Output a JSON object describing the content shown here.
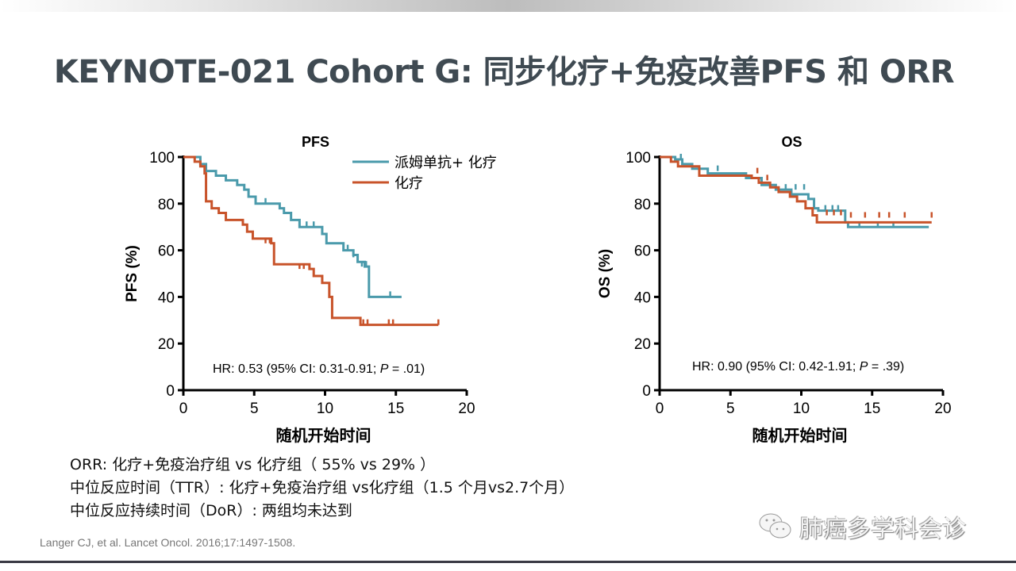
{
  "title": "KEYNOTE-021 Cohort G: 同步化疗+免疫改善PFS 和 ORR",
  "colors": {
    "combo": "#4a9aab",
    "chemo": "#c8532a",
    "title": "#3f4a52"
  },
  "chart_data": [
    {
      "type": "line",
      "subtype": "kaplan-meier",
      "title": "PFS",
      "xlabel": "随机开始时间",
      "ylabel": "PFS (%)",
      "xlim": [
        0,
        20
      ],
      "ylim": [
        0,
        100
      ],
      "xticks": [
        0,
        5,
        10,
        15,
        20
      ],
      "yticks": [
        0,
        20,
        40,
        60,
        80,
        100
      ],
      "legend_placement": "top-right",
      "annotation": {
        "pre": "HR: 0.53 (95% CI: 0.31-0.91; ",
        "italic": "P",
        "post": " = .01)"
      },
      "series": [
        {
          "name": "派姆单抗+ 化疗",
          "color": "#4a9aab",
          "steps": [
            [
              0,
              100
            ],
            [
              1.2,
              97
            ],
            [
              1.6,
              94
            ],
            [
              2.3,
              92
            ],
            [
              3,
              90
            ],
            [
              3.8,
              88
            ],
            [
              4.3,
              86
            ],
            [
              4.6,
              83
            ],
            [
              5.1,
              80
            ],
            [
              6.8,
              78
            ],
            [
              7.1,
              76
            ],
            [
              7.6,
              73
            ],
            [
              8.2,
              70
            ],
            [
              9.8,
              67
            ],
            [
              10.1,
              63
            ],
            [
              11.3,
              60
            ],
            [
              12,
              58
            ],
            [
              12.3,
              55
            ],
            [
              12.8,
              53
            ],
            [
              13.1,
              40
            ],
            [
              15.4,
              40
            ]
          ],
          "censored": [
            [
              5.8,
              80
            ],
            [
              8.7,
              70
            ],
            [
              9.2,
              70
            ],
            [
              11.6,
              60
            ],
            [
              12,
              57
            ],
            [
              12.6,
              53
            ],
            [
              12.9,
              53
            ],
            [
              14.6,
              40
            ]
          ]
        },
        {
          "name": "化疗",
          "color": "#c8532a",
          "steps": [
            [
              0,
              100
            ],
            [
              0.8,
              98
            ],
            [
              1.2,
              96
            ],
            [
              1.5,
              93
            ],
            [
              1.6,
              81
            ],
            [
              2,
              78
            ],
            [
              2.5,
              76
            ],
            [
              3,
              73
            ],
            [
              4.2,
              71
            ],
            [
              4.5,
              68
            ],
            [
              4.9,
              65
            ],
            [
              6.2,
              63
            ],
            [
              6.4,
              54
            ],
            [
              8.9,
              52
            ],
            [
              9.2,
              49
            ],
            [
              9.8,
              46
            ],
            [
              10.3,
              40
            ],
            [
              10.5,
              31
            ],
            [
              12.5,
              28
            ],
            [
              18,
              28
            ]
          ],
          "censored": [
            [
              5.8,
              63
            ],
            [
              6.1,
              63
            ],
            [
              8.2,
              52
            ],
            [
              8.5,
              52
            ],
            [
              12.7,
              28
            ],
            [
              13,
              28
            ],
            [
              14.5,
              28
            ],
            [
              14.8,
              28
            ],
            [
              18,
              28
            ]
          ]
        }
      ]
    },
    {
      "type": "line",
      "subtype": "kaplan-meier",
      "title": "OS",
      "xlabel": "随机开始时间",
      "ylabel": "OS (%)",
      "xlim": [
        0,
        20
      ],
      "ylim": [
        0,
        100
      ],
      "xticks": [
        0,
        5,
        10,
        15,
        20
      ],
      "yticks": [
        0,
        20,
        40,
        60,
        80,
        100
      ],
      "annotation": {
        "pre": "HR: 0.90 (95% CI: 0.42-1.91; ",
        "italic": "P",
        "post": " = .39)"
      },
      "series": [
        {
          "name": "派姆单抗+ 化疗",
          "color": "#4a9aab",
          "steps": [
            [
              0,
              100
            ],
            [
              1.1,
              99
            ],
            [
              1.6,
              97
            ],
            [
              2.3,
              95
            ],
            [
              3.4,
              93
            ],
            [
              6.1,
              91
            ],
            [
              7.2,
              88
            ],
            [
              8.2,
              86
            ],
            [
              9.3,
              84
            ],
            [
              10.5,
              82
            ],
            [
              10.9,
              78
            ],
            [
              11.2,
              77
            ],
            [
              13.1,
              72
            ],
            [
              13.3,
              70
            ],
            [
              19,
              70
            ]
          ],
          "censored": [
            [
              1.5,
              99
            ],
            [
              4.1,
              94
            ],
            [
              8.9,
              86
            ],
            [
              9.6,
              86
            ],
            [
              10.2,
              86
            ],
            [
              11.7,
              77
            ],
            [
              12.2,
              77
            ],
            [
              12.6,
              77
            ],
            [
              14.1,
              70
            ],
            [
              15.4,
              70
            ],
            [
              16.5,
              70
            ]
          ]
        },
        {
          "name": "化疗",
          "color": "#c8532a",
          "steps": [
            [
              0,
              100
            ],
            [
              0.8,
              98
            ],
            [
              1.3,
              96
            ],
            [
              2.8,
              92
            ],
            [
              6.5,
              91
            ],
            [
              7,
              89
            ],
            [
              7.8,
              87
            ],
            [
              8.4,
              85
            ],
            [
              9.2,
              83
            ],
            [
              9.7,
              81
            ],
            [
              10.3,
              78
            ],
            [
              10.8,
              75
            ],
            [
              11.1,
              72
            ],
            [
              19.2,
              72
            ]
          ],
          "censored": [
            [
              6.9,
              93
            ],
            [
              7.6,
              90
            ],
            [
              11.8,
              75
            ],
            [
              12.3,
              75
            ],
            [
              12.8,
              75
            ],
            [
              13.5,
              74
            ],
            [
              14.5,
              74
            ],
            [
              15.5,
              74
            ],
            [
              16.2,
              74
            ],
            [
              17.3,
              74
            ],
            [
              19.2,
              74
            ]
          ]
        }
      ]
    }
  ],
  "notes": [
    "ORR: 化疗+免疫治疗组 vs 化疗组（ 55% vs 29% ）",
    "中位反应时间（TTR）: 化疗+免疫治疗组 vs化疗组（1.5 个月vs2.7个月）",
    "中位反应持续时间（DoR）: 两组均未达到"
  ],
  "citation": "Langer CJ, et al. Lancet Oncol. 2016;17:1497-1508.",
  "watermark": {
    "icon": "wechat-icon",
    "text": "肺癌多学科会诊"
  }
}
